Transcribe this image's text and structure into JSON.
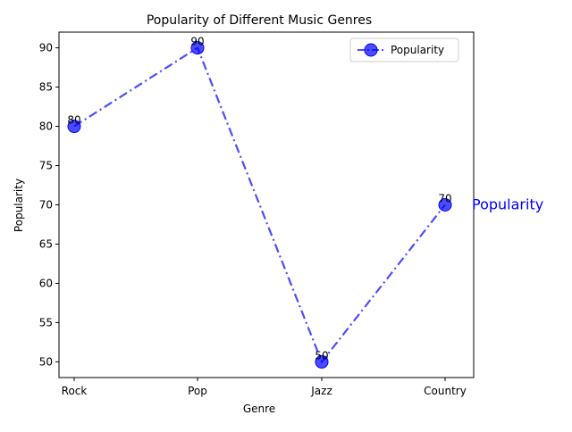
{
  "chart_data": {
    "type": "line",
    "title": "Popularity of Different Music Genres",
    "xlabel": "Genre",
    "ylabel": "Popularity",
    "categories": [
      "Rock",
      "Pop",
      "Jazz",
      "Country"
    ],
    "series": [
      {
        "name": "Popularity",
        "values": [
          80,
          90,
          50,
          70
        ],
        "color": "#0000ff",
        "line_style": "dash-dot",
        "marker": "circle"
      }
    ],
    "ylim": [
      48,
      92
    ],
    "yticks": [
      "50",
      "55",
      "60",
      "65",
      "70",
      "75",
      "80",
      "85",
      "90"
    ],
    "data_labels": [
      "80",
      "90",
      "50",
      "70"
    ],
    "grid": false,
    "legend": {
      "placement": "top-right",
      "entries": [
        "Popularity"
      ]
    },
    "annotations": [
      {
        "text": "Popularity",
        "anchor_category": "Country",
        "color": "#0000ff"
      }
    ]
  }
}
